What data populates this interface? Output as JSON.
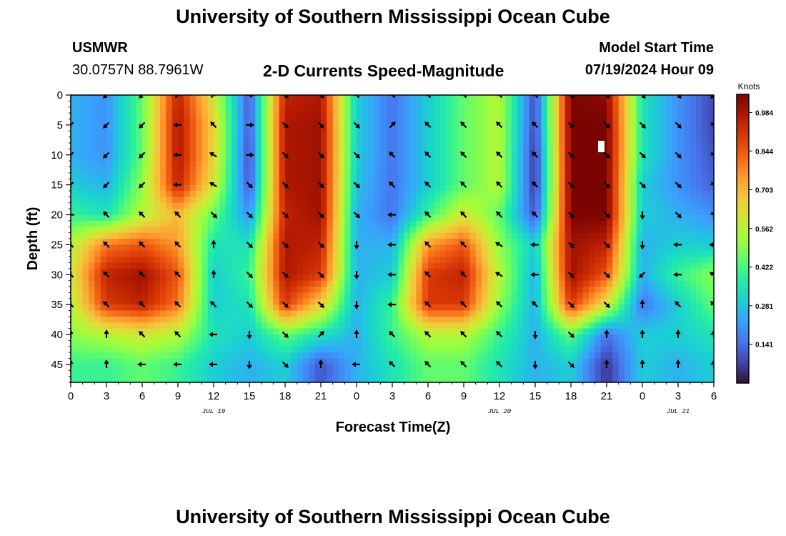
{
  "page_title": "University of Southern Mississippi Ocean Cube",
  "station": {
    "name": "USMWR",
    "coords": "30.0757N  88.7961W"
  },
  "subtitle": "2-D Currents Speed-Magnitude",
  "model": {
    "label": "Model Start Time",
    "value": "07/19/2024 Hour 09"
  },
  "chart_data": {
    "type": "heatmap",
    "title": "2-D Currents Speed-Magnitude",
    "xlabel": "Forecast Time(Z)",
    "ylabel": "Depth (ft)",
    "x_tick_labels": [
      "0",
      "3",
      "6",
      "9",
      "12",
      "15",
      "18",
      "21",
      "0",
      "3",
      "6",
      "9",
      "12",
      "15",
      "18",
      "21",
      "0",
      "3",
      "6"
    ],
    "x_range_hours": [
      0,
      54
    ],
    "date_labels": [
      {
        "text": "JUL 19",
        "hour": 12
      },
      {
        "text": "JUL 20",
        "hour": 36
      },
      {
        "text": "JUL 21",
        "hour": 51
      }
    ],
    "y_ticks": [
      0,
      5,
      10,
      15,
      20,
      25,
      30,
      35,
      40,
      45
    ],
    "y_range": [
      0,
      48
    ],
    "colorbar": {
      "unit": "Knots",
      "tick_labels": [
        "0.984",
        "0.844",
        "0.703",
        "0.562",
        "0.422",
        "0.281",
        "0.141"
      ],
      "range": [
        0,
        1.05
      ],
      "colors": [
        "#30123b",
        "#4145ab",
        "#4675ed",
        "#39a2fc",
        "#1bcfd4",
        "#24eca6",
        "#61fc6c",
        "#a4fc3b",
        "#d1e834",
        "#f3c63a",
        "#fe9b2d",
        "#f36315",
        "#d93806",
        "#b11901",
        "#7a0402"
      ]
    },
    "depth_levels": [
      0,
      5,
      10,
      15,
      20,
      25,
      30,
      35,
      40,
      45
    ],
    "hours": [
      0,
      3,
      6,
      9,
      12,
      15,
      18,
      21,
      24,
      27,
      30,
      33,
      36,
      39,
      42,
      45,
      48,
      51,
      54
    ],
    "speed_knots": [
      [
        0.25,
        0.2,
        0.45,
        0.95,
        0.6,
        0.1,
        0.95,
        0.98,
        0.3,
        0.15,
        0.3,
        0.45,
        0.55,
        0.08,
        1.05,
        1.02,
        0.35,
        0.2,
        0.08
      ],
      [
        0.25,
        0.2,
        0.45,
        0.98,
        0.65,
        0.1,
        0.98,
        1.0,
        0.3,
        0.15,
        0.3,
        0.45,
        0.55,
        0.08,
        1.05,
        1.05,
        0.35,
        0.2,
        0.08
      ],
      [
        0.25,
        0.2,
        0.45,
        0.98,
        0.65,
        0.08,
        0.98,
        1.0,
        0.3,
        0.15,
        0.3,
        0.45,
        0.55,
        0.05,
        1.05,
        1.05,
        0.35,
        0.2,
        0.1
      ],
      [
        0.3,
        0.25,
        0.5,
        0.95,
        0.6,
        0.1,
        0.98,
        1.0,
        0.28,
        0.15,
        0.3,
        0.45,
        0.55,
        0.05,
        1.05,
        1.05,
        0.3,
        0.2,
        0.12
      ],
      [
        0.4,
        0.35,
        0.55,
        0.7,
        0.45,
        0.2,
        0.95,
        1.0,
        0.25,
        0.15,
        0.4,
        0.6,
        0.45,
        0.1,
        1.05,
        1.05,
        0.3,
        0.25,
        0.2
      ],
      [
        0.55,
        0.8,
        0.85,
        0.75,
        0.35,
        0.35,
        0.98,
        0.95,
        0.25,
        0.25,
        0.75,
        0.85,
        0.5,
        0.3,
        1.0,
        0.95,
        0.25,
        0.3,
        0.3
      ],
      [
        0.6,
        0.95,
        1.0,
        0.85,
        0.3,
        0.4,
        0.98,
        0.9,
        0.25,
        0.3,
        0.9,
        0.95,
        0.55,
        0.25,
        1.0,
        0.85,
        0.25,
        0.4,
        0.5
      ],
      [
        0.55,
        0.9,
        0.95,
        0.8,
        0.3,
        0.35,
        0.9,
        0.65,
        0.25,
        0.4,
        0.9,
        0.9,
        0.5,
        0.25,
        0.9,
        0.6,
        0.15,
        0.3,
        0.45
      ],
      [
        0.5,
        0.55,
        0.6,
        0.55,
        0.35,
        0.3,
        0.45,
        0.35,
        0.25,
        0.4,
        0.55,
        0.55,
        0.4,
        0.25,
        0.45,
        0.15,
        0.3,
        0.3,
        0.35
      ],
      [
        0.4,
        0.4,
        0.45,
        0.4,
        0.3,
        0.25,
        0.3,
        0.1,
        0.25,
        0.35,
        0.45,
        0.45,
        0.35,
        0.25,
        0.3,
        0.05,
        0.3,
        0.25,
        0.3
      ]
    ],
    "vectors": {
      "depths": [
        0,
        5,
        10,
        15,
        20,
        25,
        30,
        35,
        40,
        45
      ],
      "hours": [
        0,
        3,
        6,
        9,
        12,
        15,
        18,
        21,
        24,
        27,
        30,
        33,
        36,
        39,
        42,
        45,
        48,
        51,
        54
      ],
      "direction_deg": [
        [
          225,
          225,
          225,
          45,
          45,
          90,
          135,
          135,
          315,
          315,
          315,
          315,
          315,
          315,
          135,
          135,
          135,
          135,
          225
        ],
        [
          225,
          225,
          225,
          270,
          315,
          90,
          135,
          135,
          135,
          45,
          315,
          315,
          315,
          315,
          135,
          135,
          135,
          135,
          135
        ],
        [
          225,
          225,
          225,
          270,
          300,
          90,
          135,
          135,
          135,
          315,
          315,
          315,
          315,
          315,
          135,
          135,
          135,
          135,
          135
        ],
        [
          225,
          225,
          225,
          270,
          300,
          135,
          135,
          135,
          135,
          315,
          315,
          315,
          315,
          315,
          135,
          135,
          135,
          135,
          135
        ],
        [
          270,
          315,
          315,
          315,
          135,
          135,
          135,
          135,
          135,
          270,
          315,
          315,
          315,
          315,
          135,
          135,
          180,
          135,
          135
        ],
        [
          315,
          315,
          315,
          315,
          0,
          135,
          135,
          135,
          180,
          270,
          315,
          315,
          300,
          270,
          135,
          135,
          180,
          270,
          270
        ],
        [
          315,
          315,
          315,
          315,
          0,
          135,
          135,
          135,
          180,
          270,
          315,
          315,
          300,
          270,
          135,
          135,
          225,
          270,
          300
        ],
        [
          315,
          315,
          315,
          315,
          315,
          135,
          135,
          135,
          180,
          270,
          315,
          315,
          315,
          315,
          135,
          135,
          0,
          315,
          315
        ],
        [
          0,
          0,
          315,
          315,
          270,
          180,
          135,
          45,
          0,
          315,
          315,
          315,
          315,
          180,
          135,
          0,
          0,
          0,
          0
        ],
        [
          0,
          0,
          270,
          270,
          270,
          180,
          135,
          0,
          270,
          315,
          315,
          315,
          315,
          180,
          135,
          0,
          0,
          0,
          0
        ]
      ]
    }
  }
}
